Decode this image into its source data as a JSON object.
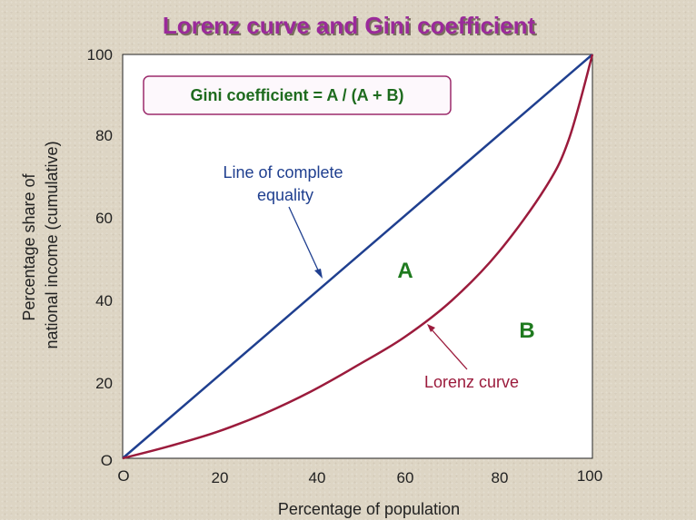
{
  "chart_data": {
    "type": "line",
    "title": "Lorenz curve and Gini coefficient",
    "xlabel": "Percentage of population",
    "ylabel_lines": [
      "Percentage share of",
      "national income (cumulative)"
    ],
    "xlim": [
      0,
      100
    ],
    "ylim": [
      0,
      100
    ],
    "grid": false,
    "x_ticks": [
      "O",
      "20",
      "40",
      "60",
      "80",
      "100"
    ],
    "y_ticks": [
      "O",
      "20",
      "40",
      "60",
      "80",
      "100"
    ],
    "series": [
      {
        "name": "Line of complete equality",
        "color": "#1f3f8f",
        "x": [
          0,
          100
        ],
        "y": [
          0,
          100
        ]
      },
      {
        "name": "Lorenz curve",
        "color": "#9b1b3c",
        "x": [
          0,
          10,
          20,
          30,
          40,
          50,
          60,
          70,
          80,
          90,
          95,
          100
        ],
        "y": [
          0,
          3,
          6.5,
          11,
          16.5,
          23,
          30,
          39,
          51,
          67,
          79,
          100
        ]
      }
    ],
    "annotations": {
      "equality_label_lines": [
        "Line of complete",
        "equality"
      ],
      "lorenz_label": "Lorenz curve",
      "region_a": "A",
      "region_b": "B",
      "formula": "Gini coefficient = A / (A + B)"
    },
    "colors": {
      "title": "#9b2a9b",
      "title_shadow": "#7a6f5f",
      "equality_text": "#1f3f8f",
      "lorenz_text": "#9b1b3c",
      "region": "#1e7a1e",
      "formula_border": "#9b2a6b",
      "plot_bg": "#ffffff"
    }
  }
}
